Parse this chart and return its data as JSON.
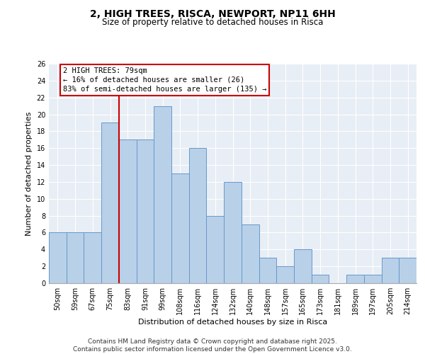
{
  "title_line1": "2, HIGH TREES, RISCA, NEWPORT, NP11 6HH",
  "title_line2": "Size of property relative to detached houses in Risca",
  "xlabel": "Distribution of detached houses by size in Risca",
  "ylabel": "Number of detached properties",
  "categories": [
    "50sqm",
    "59sqm",
    "67sqm",
    "75sqm",
    "83sqm",
    "91sqm",
    "99sqm",
    "108sqm",
    "116sqm",
    "124sqm",
    "132sqm",
    "140sqm",
    "148sqm",
    "157sqm",
    "165sqm",
    "173sqm",
    "181sqm",
    "189sqm",
    "197sqm",
    "205sqm",
    "214sqm"
  ],
  "values": [
    6,
    6,
    6,
    19,
    17,
    17,
    21,
    13,
    16,
    8,
    12,
    7,
    3,
    2,
    4,
    1,
    0,
    1,
    1,
    3,
    3
  ],
  "bar_color": "#b8d0e8",
  "bar_edge_color": "#6699cc",
  "red_line_color": "#cc0000",
  "annotation_box_edge_color": "#cc0000",
  "annotation_line1": "2 HIGH TREES: 79sqm",
  "annotation_line2": "← 16% of detached houses are smaller (26)",
  "annotation_line3": "83% of semi-detached houses are larger (135) →",
  "ylim": [
    0,
    26
  ],
  "yticks": [
    0,
    2,
    4,
    6,
    8,
    10,
    12,
    14,
    16,
    18,
    20,
    22,
    24,
    26
  ],
  "background_color": "#e8eef5",
  "footer_text": "Contains HM Land Registry data © Crown copyright and database right 2025.\nContains public sector information licensed under the Open Government Licence v3.0.",
  "title_fontsize": 10,
  "subtitle_fontsize": 8.5,
  "axis_label_fontsize": 8,
  "tick_fontsize": 7,
  "annotation_fontsize": 7.5,
  "footer_fontsize": 6.5
}
